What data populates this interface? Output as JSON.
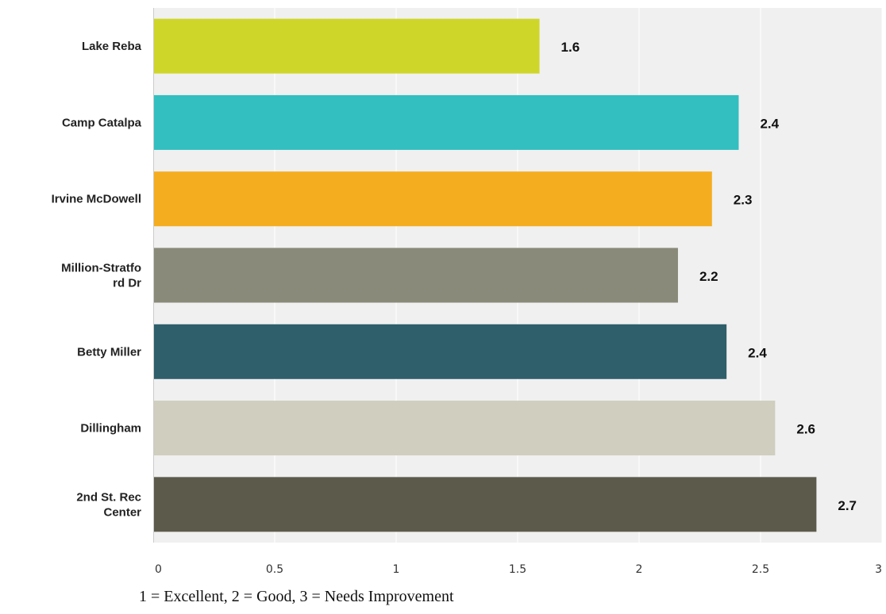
{
  "chart_data": {
    "type": "bar",
    "orientation": "horizontal",
    "categories": [
      [
        "Lake Reba"
      ],
      [
        "Camp Catalpa"
      ],
      [
        "Irvine McDowell"
      ],
      [
        "Million-Stratfo",
        "rd Dr"
      ],
      [
        "Betty Miller"
      ],
      [
        "Dillingham"
      ],
      [
        "2nd St. Rec",
        "Center"
      ]
    ],
    "values": [
      1.59,
      2.41,
      2.3,
      2.16,
      2.36,
      2.56,
      2.73
    ],
    "value_labels": [
      "1.6",
      "2.4",
      "2.3",
      "2.2",
      "2.4",
      "2.6",
      "2.7"
    ],
    "colors": [
      "#cfd62a",
      "#33bfc0",
      "#f5ad20",
      "#8a8a7a",
      "#2e5f6b",
      "#cfcebf",
      "#5c5a4b"
    ],
    "xlim": [
      0,
      3
    ],
    "xticks": [
      "0",
      "0.5",
      "1",
      "1.5",
      "2",
      "2.5",
      "3"
    ],
    "xtick_values": [
      0,
      0.5,
      1,
      1.5,
      2,
      2.5,
      3
    ],
    "grid": true,
    "plot_background": "#f0f0f0",
    "grid_color": "#ffffff"
  },
  "footnote": "1 = Excellent, 2 = Good, 3 = Needs Improvement"
}
